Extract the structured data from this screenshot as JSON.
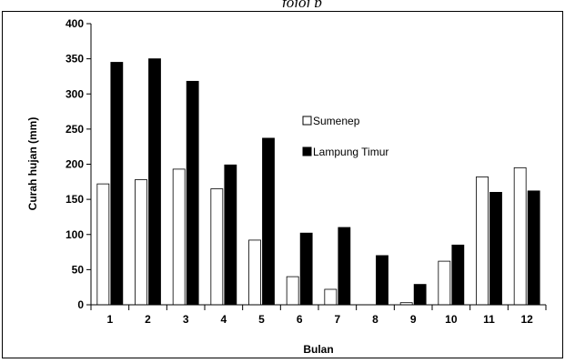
{
  "page": {
    "header_fragment": "fojoj                    p"
  },
  "chart_data": {
    "type": "bar",
    "title": "",
    "xlabel": "Bulan",
    "ylabel": "Curah hujan (mm)",
    "ylim": [
      0,
      400
    ],
    "yticks": [
      0,
      50,
      100,
      150,
      200,
      250,
      300,
      350,
      400
    ],
    "grid": false,
    "legend_position": "center-right",
    "categories": [
      "1",
      "2",
      "3",
      "4",
      "5",
      "6",
      "7",
      "8",
      "9",
      "10",
      "11",
      "12"
    ],
    "series": [
      {
        "name": "Sumenep",
        "color": "#ffffff",
        "values": [
          172,
          178,
          193,
          165,
          92,
          40,
          22,
          0,
          3,
          62,
          182,
          195
        ]
      },
      {
        "name": "Lampung Timur",
        "color": "#000000",
        "values": [
          345,
          350,
          318,
          199,
          237,
          102,
          110,
          70,
          29,
          85,
          160,
          162
        ]
      }
    ]
  }
}
